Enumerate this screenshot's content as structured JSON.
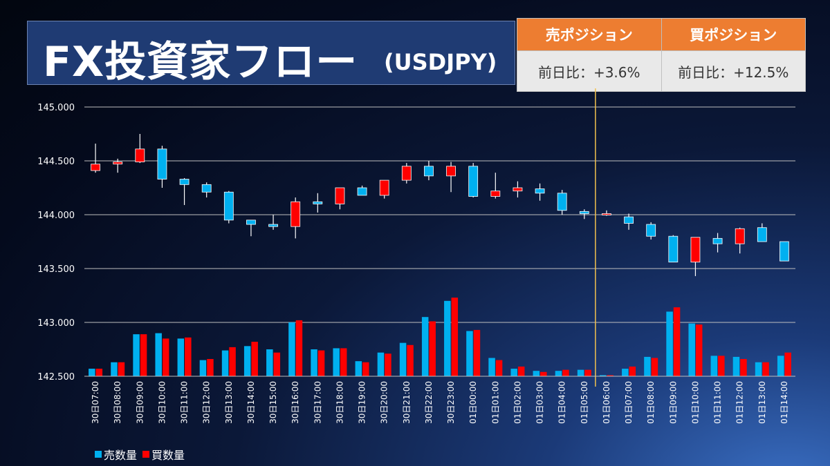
{
  "header": {
    "title": "FX投資家フロー",
    "pair": "(USDJPY)"
  },
  "positions": {
    "sell_header": "売ポジション",
    "buy_header": "買ポジション",
    "sell_change": "前日比：+3.6%",
    "buy_change": "前日比：+12.5%"
  },
  "legend": {
    "sell_label": "売数量",
    "buy_label": "買数量"
  },
  "colors": {
    "up": "#ff0000",
    "down": "#00b0f0",
    "sell_volume": "#00b0f0",
    "buy_volume": "#ff0000",
    "marker": "#f2c14e",
    "header_orange": "#ed7d31"
  },
  "chart_data": {
    "type": "candlestick",
    "title": "",
    "ylim": [
      142.5,
      145.0
    ],
    "yticks": [
      "145.000",
      "144.500",
      "144.000",
      "143.500",
      "143.000",
      "142.500"
    ],
    "grid": true,
    "legend_position": "bottom-left",
    "vertical_marker_after": "01日05:00",
    "categories": [
      "30日07:00",
      "30日08:00",
      "30日09:00",
      "30日10:00",
      "30日11:00",
      "30日12:00",
      "30日13:00",
      "30日14:00",
      "30日15:00",
      "30日16:00",
      "30日17:00",
      "30日18:00",
      "30日19:00",
      "30日20:00",
      "30日21:00",
      "30日22:00",
      "30日23:00",
      "01日00:00",
      "01日01:00",
      "01日02:00",
      "01日03:00",
      "01日04:00",
      "01日05:00",
      "01日06:00",
      "01日07:00",
      "01日08:00",
      "01日09:00",
      "01日10:00",
      "01日11:00",
      "01日12:00",
      "01日13:00",
      "01日14:00"
    ],
    "ohlc": [
      [
        144.41,
        144.66,
        144.39,
        144.47
      ],
      [
        144.47,
        144.52,
        144.39,
        144.49
      ],
      [
        144.49,
        144.75,
        144.48,
        144.61
      ],
      [
        144.61,
        144.64,
        144.25,
        144.33
      ],
      [
        144.33,
        144.34,
        144.09,
        144.28
      ],
      [
        144.28,
        144.3,
        144.16,
        144.21
      ],
      [
        144.21,
        144.22,
        143.92,
        143.95
      ],
      [
        143.95,
        143.95,
        143.8,
        143.91
      ],
      [
        143.91,
        144.0,
        143.86,
        143.89
      ],
      [
        143.89,
        144.16,
        143.78,
        144.12
      ],
      [
        144.12,
        144.2,
        144.02,
        144.1
      ],
      [
        144.1,
        144.25,
        144.05,
        144.25
      ],
      [
        144.25,
        144.27,
        144.18,
        144.18
      ],
      [
        144.18,
        144.32,
        144.15,
        144.32
      ],
      [
        144.32,
        144.48,
        144.29,
        144.45
      ],
      [
        144.45,
        144.5,
        144.32,
        144.36
      ],
      [
        144.36,
        144.49,
        144.21,
        144.45
      ],
      [
        144.45,
        144.48,
        144.16,
        144.17
      ],
      [
        144.17,
        144.39,
        144.15,
        144.22
      ],
      [
        144.22,
        144.31,
        144.16,
        144.25
      ],
      [
        144.24,
        144.29,
        144.13,
        144.2
      ],
      [
        144.2,
        144.23,
        144.0,
        144.04
      ],
      [
        144.03,
        144.05,
        143.96,
        144.01
      ],
      [
        144.01,
        144.04,
        143.99,
        144.01
      ],
      [
        143.98,
        144.01,
        143.86,
        143.92
      ],
      [
        143.91,
        143.93,
        143.77,
        143.8
      ],
      [
        143.8,
        143.81,
        143.56,
        143.56
      ],
      [
        143.56,
        143.79,
        143.43,
        143.79
      ],
      [
        143.78,
        143.83,
        143.65,
        143.73
      ],
      [
        143.73,
        143.88,
        143.64,
        143.87
      ],
      [
        143.88,
        143.92,
        143.75,
        143.75
      ],
      [
        143.75,
        143.75,
        143.57,
        143.57
      ]
    ],
    "series": [
      {
        "name": "売数量",
        "values": [
          142.57,
          142.63,
          142.89,
          142.9,
          142.85,
          142.65,
          142.74,
          142.78,
          142.75,
          143.0,
          142.75,
          142.76,
          142.64,
          142.72,
          142.81,
          143.05,
          143.2,
          142.92,
          142.67,
          142.57,
          142.55,
          142.55,
          142.56,
          142.51,
          142.57,
          142.68,
          143.1,
          142.99,
          142.69,
          142.68,
          142.63,
          142.69
        ]
      },
      {
        "name": "買数量",
        "values": [
          142.57,
          142.63,
          142.89,
          142.85,
          142.86,
          142.66,
          142.77,
          142.82,
          142.72,
          143.02,
          142.74,
          142.76,
          142.63,
          142.71,
          142.79,
          143.01,
          143.23,
          142.93,
          142.65,
          142.59,
          142.54,
          142.56,
          142.56,
          142.51,
          142.59,
          142.67,
          143.14,
          142.98,
          142.69,
          142.66,
          142.63,
          142.72
        ]
      }
    ]
  }
}
